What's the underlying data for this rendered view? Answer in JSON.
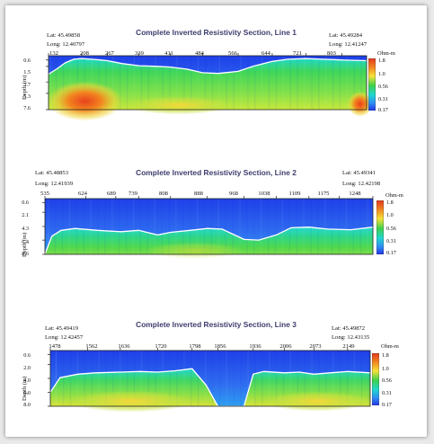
{
  "colors": {
    "background": "#ffffff",
    "title": "#3d3d6e",
    "scale_low": "#2d4df0",
    "scale_high": "#e33a1f"
  },
  "colorbar": {
    "unit": "Ohm-m",
    "values": [
      "1.8",
      "1.0",
      "0.56",
      "0.31",
      "0.17"
    ]
  },
  "chart_data": [
    {
      "type": "heatmap",
      "title": "Complete Inverted Resistivity Section, Line 1",
      "ylabel": "Depth (m)",
      "lat_left": "Lat: 45.49858",
      "long_left": "Long: 12.40797",
      "lat_right": "Lat: 45.49284",
      "long_right": "Long: 12.41247",
      "x_ticks": [
        "132",
        "208",
        "267",
        "339",
        "411",
        "484",
        "566",
        "644",
        "721",
        "803"
      ],
      "xlim": [
        132,
        860
      ],
      "depth_ticks": [
        "0.6",
        "1.5",
        "3.7",
        "5.3",
        "7.6"
      ],
      "ylim": [
        0,
        7.6
      ],
      "resistivity_scale": [
        0.17,
        1.8
      ],
      "boundary_depth": {
        "x": [
          132,
          150,
          170,
          190,
          208,
          230,
          250,
          267,
          300,
          339,
          380,
          411,
          450,
          484,
          520,
          566,
          600,
          644,
          680,
          721,
          760,
          803,
          860
        ],
        "depth": [
          2.6,
          1.9,
          1.0,
          0.5,
          0.4,
          0.5,
          0.6,
          0.7,
          1.1,
          1.4,
          1.5,
          1.6,
          1.9,
          2.4,
          2.5,
          2.2,
          1.5,
          0.8,
          0.5,
          0.4,
          0.5,
          0.6,
          0.7
        ]
      }
    },
    {
      "type": "heatmap",
      "title": "Complete Inverted Resistivity Section, Line 2",
      "ylabel": "Depth (m)",
      "lat_left": "Lat: 45.48853",
      "long_left": "Long: 12.41939",
      "lat_right": "Lat: 45.49341",
      "long_right": "Long: 12.42198",
      "x_ticks": [
        "535",
        "624",
        "689",
        "739",
        "808",
        "888",
        "968",
        "1038",
        "1109",
        "1175",
        "1248"
      ],
      "xlim": [
        535,
        1248
      ],
      "depth_ticks": [
        "0.6",
        "2.1",
        "4.3",
        "6.4",
        "8.6"
      ],
      "ylim": [
        0,
        8.6
      ],
      "resistivity_scale": [
        0.17,
        1.8
      ],
      "boundary_depth": {
        "x": [
          535,
          550,
          570,
          600,
          650,
          700,
          739,
          780,
          808,
          850,
          888,
          920,
          968,
          1000,
          1038,
          1070,
          1109,
          1150,
          1200,
          1248
        ],
        "depth": [
          8.6,
          5.8,
          4.9,
          4.6,
          4.9,
          5.1,
          4.9,
          5.6,
          5.2,
          4.9,
          4.6,
          4.7,
          6.3,
          6.4,
          5.6,
          4.5,
          4.4,
          4.7,
          4.8,
          4.4
        ]
      }
    },
    {
      "type": "heatmap",
      "title": "Complete Inverted Resistivity Section, Line 3",
      "ylabel": "Depth (m)",
      "lat_left": "Lat: 45.49419",
      "long_left": "Long: 12.42457",
      "lat_right": "Lat: 45.49872",
      "long_right": "Long: 12.43135",
      "x_ticks": [
        "1478",
        "1562",
        "1636",
        "1720",
        "1798",
        "1856",
        "1936",
        "2006",
        "2073",
        "2149"
      ],
      "xlim": [
        1478,
        2200
      ],
      "depth_ticks": [
        "0.6",
        "2.0",
        "4.0",
        "6.0",
        "8.0"
      ],
      "ylim": [
        0,
        8.0
      ],
      "resistivity_scale": [
        0.17,
        1.8
      ],
      "boundary_depth": {
        "x": [
          1478,
          1500,
          1540,
          1580,
          1636,
          1680,
          1720,
          1760,
          1798,
          1830,
          1856,
          1890,
          1915,
          1936,
          1960,
          2006,
          2040,
          2073,
          2110,
          2149,
          2200
        ],
        "depth": [
          6.0,
          3.9,
          3.4,
          3.2,
          3.1,
          3.0,
          3.1,
          2.9,
          2.6,
          5.0,
          8.0,
          8.0,
          8.0,
          3.4,
          3.0,
          3.2,
          3.1,
          3.4,
          3.2,
          3.0,
          3.2
        ]
      }
    }
  ]
}
